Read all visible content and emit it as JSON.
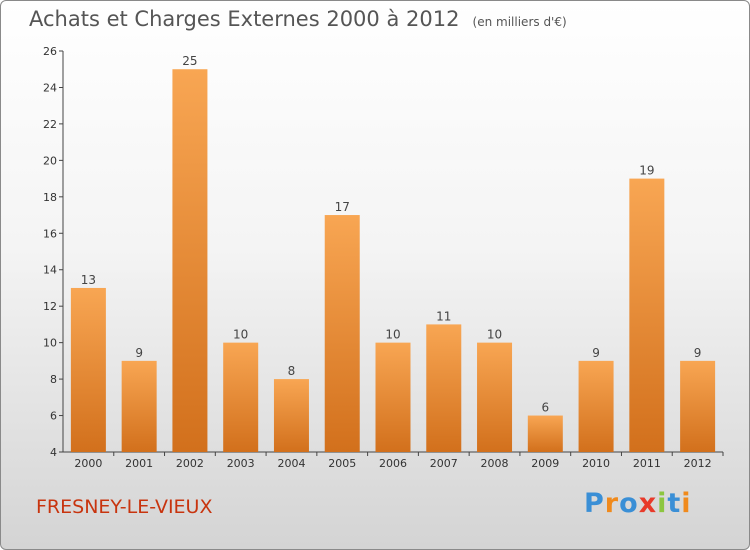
{
  "chart_data": {
    "type": "bar",
    "title": "Achats et Charges Externes 2000 à 2012",
    "subtitle": "(en milliers d'€)",
    "categories": [
      "2000",
      "2001",
      "2002",
      "2003",
      "2004",
      "2005",
      "2006",
      "2007",
      "2008",
      "2009",
      "2010",
      "2011",
      "2012"
    ],
    "values": [
      13,
      9,
      25,
      10,
      8,
      17,
      10,
      11,
      10,
      6,
      9,
      19,
      9
    ],
    "ylim": [
      4,
      26
    ],
    "yticks": [
      4,
      6,
      8,
      10,
      12,
      14,
      16,
      18,
      20,
      22,
      24,
      26
    ],
    "grid": false,
    "bar_color": "#f0922e"
  },
  "footer": {
    "town": "FRESNEY-LE-VIEUX",
    "brand": "Proxiti",
    "brand_colors": [
      "#3a8fd6",
      "#f08a1c",
      "#3a8fd6",
      "#e83a2a",
      "#8cc63f",
      "#3a8fd6",
      "#f08a1c"
    ]
  }
}
